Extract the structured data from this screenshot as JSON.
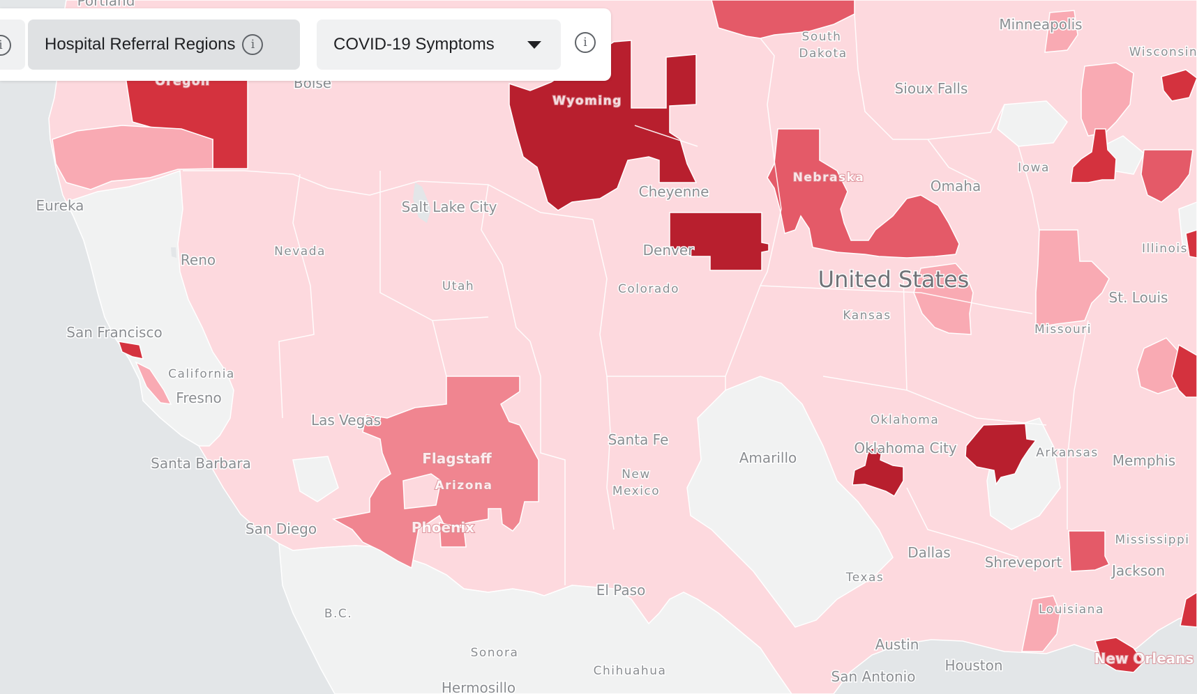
{
  "toolbar": {
    "region_type_label": "Hospital Referral Regions",
    "metric_dropdown_value": "COVID-19 Symptoms",
    "info_glyph": "i"
  },
  "map": {
    "country_label": "United States",
    "land_color": "#fdd9de",
    "no_data_color": "#f1f2f2",
    "ocean_color": "#e3e6e8",
    "intensity_colors": [
      "#fdd9de",
      "#f9a9b2",
      "#f08590",
      "#e45a68",
      "#d23040",
      "#b81f2e"
    ],
    "labels": [
      {
        "name": "Portland",
        "type": "city"
      },
      {
        "name": "Oregon",
        "type": "state-on-red"
      },
      {
        "name": "Boise",
        "type": "city"
      },
      {
        "name": "Wyoming",
        "type": "state-on-red"
      },
      {
        "name": "South",
        "type": "state"
      },
      {
        "name": "Dakota",
        "type": "state"
      },
      {
        "name": "Minneapolis",
        "type": "city"
      },
      {
        "name": "Wisconsin",
        "type": "state"
      },
      {
        "name": "Sioux Falls",
        "type": "city"
      },
      {
        "name": "Iowa",
        "type": "state"
      },
      {
        "name": "Omaha",
        "type": "city"
      },
      {
        "name": "Nebraska",
        "type": "state-on-red"
      },
      {
        "name": "Cheyenne",
        "type": "city"
      },
      {
        "name": "Eureka",
        "type": "city"
      },
      {
        "name": "Salt Lake City",
        "type": "city"
      },
      {
        "name": "Nevada",
        "type": "state"
      },
      {
        "name": "Reno",
        "type": "city"
      },
      {
        "name": "Utah",
        "type": "state"
      },
      {
        "name": "Denver",
        "type": "city"
      },
      {
        "name": "Colorado",
        "type": "state"
      },
      {
        "name": "Kansas",
        "type": "state"
      },
      {
        "name": "Illinois",
        "type": "state"
      },
      {
        "name": "St. Louis",
        "type": "city"
      },
      {
        "name": "Missouri",
        "type": "state"
      },
      {
        "name": "San Francisco",
        "type": "city"
      },
      {
        "name": "California",
        "type": "state"
      },
      {
        "name": "Fresno",
        "type": "city"
      },
      {
        "name": "Las Vegas",
        "type": "city"
      },
      {
        "name": "Flagstaff",
        "type": "city-on-red"
      },
      {
        "name": "Arizona",
        "type": "state-on-red"
      },
      {
        "name": "Santa Fe",
        "type": "city"
      },
      {
        "name": "New",
        "type": "state"
      },
      {
        "name": "Mexico",
        "type": "state"
      },
      {
        "name": "Amarillo",
        "type": "city"
      },
      {
        "name": "Oklahoma",
        "type": "state"
      },
      {
        "name": "Oklahoma City",
        "type": "city"
      },
      {
        "name": "Arkansas",
        "type": "state"
      },
      {
        "name": "Memphis",
        "type": "city"
      },
      {
        "name": "Santa Barbara",
        "type": "city"
      },
      {
        "name": "Phoenix",
        "type": "city-on-red"
      },
      {
        "name": "San Diego",
        "type": "city"
      },
      {
        "name": "Mississippi",
        "type": "state"
      },
      {
        "name": "Dallas",
        "type": "city"
      },
      {
        "name": "Shreveport",
        "type": "city"
      },
      {
        "name": "Jackson",
        "type": "city"
      },
      {
        "name": "Texas",
        "type": "state"
      },
      {
        "name": "El Paso",
        "type": "city"
      },
      {
        "name": "B.C.",
        "type": "state"
      },
      {
        "name": "Louisiana",
        "type": "state"
      },
      {
        "name": "Austin",
        "type": "city"
      },
      {
        "name": "Houston",
        "type": "city"
      },
      {
        "name": "New Orleans",
        "type": "city-on-red"
      },
      {
        "name": "Sonora",
        "type": "state"
      },
      {
        "name": "Chihuahua",
        "type": "state"
      },
      {
        "name": "San Antonio",
        "type": "city"
      },
      {
        "name": "Hermosillo",
        "type": "city"
      }
    ]
  }
}
